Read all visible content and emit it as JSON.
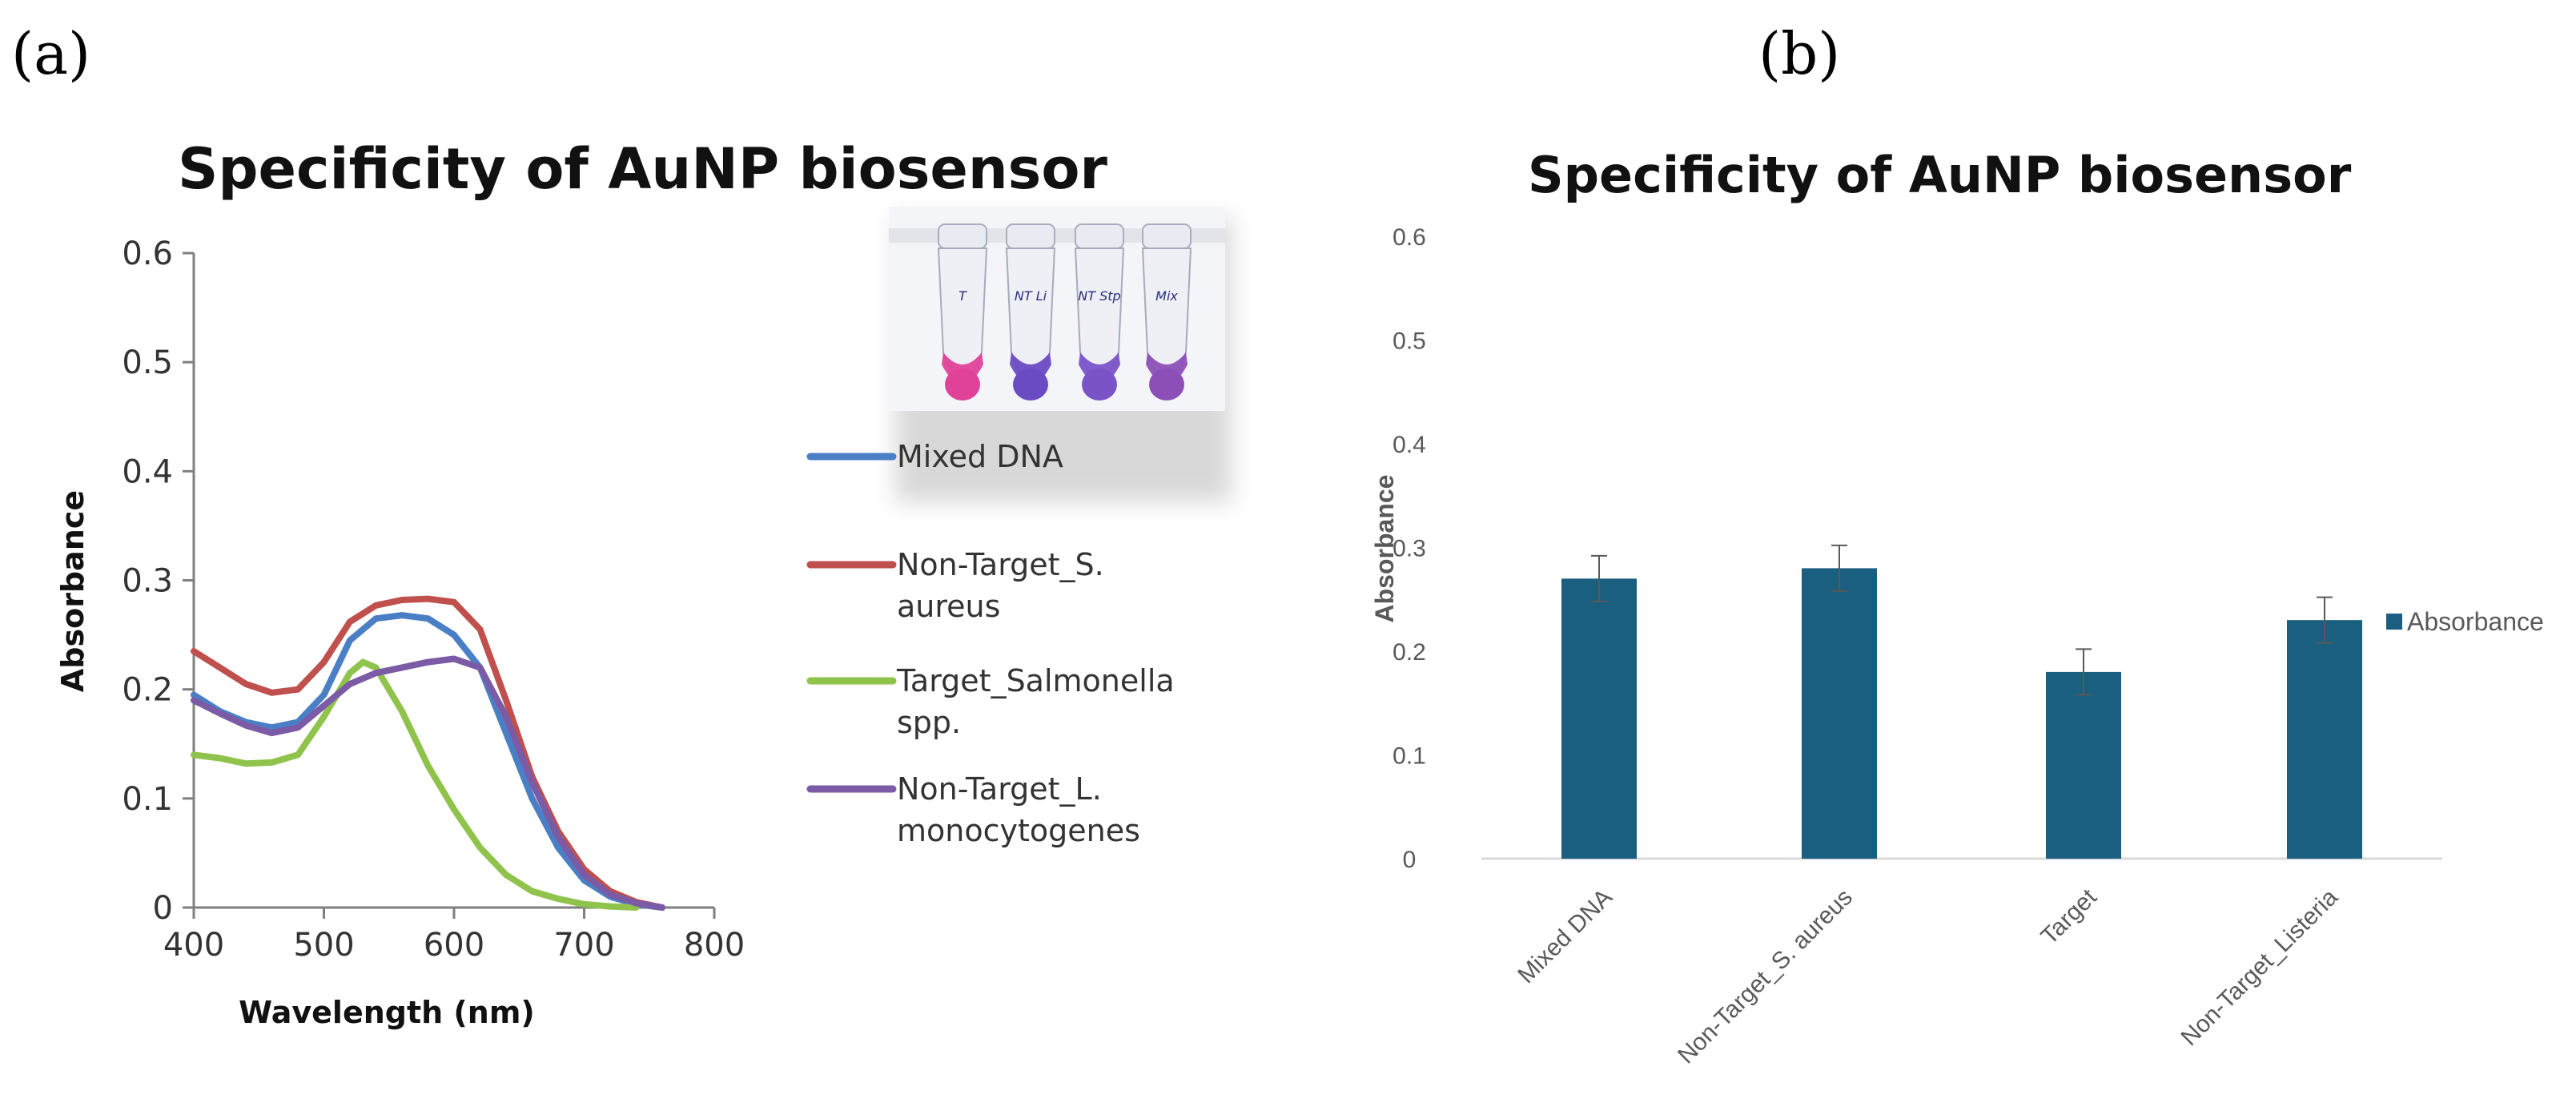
{
  "panel_labels": {
    "a": "(a)",
    "b": "(b)"
  },
  "photo": {
    "tube_labels": [
      "T",
      "NT Li",
      "NT Stp",
      "Mix"
    ],
    "tube_colors": [
      "#e0429a",
      "#6a4bc4",
      "#7a53c7",
      "#8c4fb7"
    ]
  },
  "chart_data": [
    {
      "type": "line",
      "title": "Specificity of AuNP biosensor",
      "xlabel": "Wavelength (nm)",
      "ylabel": "Absorbance",
      "xlim": [
        400,
        800
      ],
      "ylim": [
        0,
        0.6
      ],
      "xticks": [
        "400",
        "500",
        "600",
        "700",
        "800"
      ],
      "yticks": [
        "0",
        "0.1",
        "0.2",
        "0.3",
        "0.4",
        "0.5",
        "0.6"
      ],
      "xtick_values": [
        400,
        500,
        600,
        700,
        800
      ],
      "ytick_values": [
        0,
        0.1,
        0.2,
        0.3,
        0.4,
        0.5,
        0.6
      ],
      "series": [
        {
          "name": "Mixed DNA",
          "color": "#4a7fc6",
          "x": [
            400,
            420,
            440,
            460,
            480,
            500,
            520,
            540,
            560,
            580,
            600,
            620,
            640,
            660,
            680,
            700,
            720,
            740,
            760
          ],
          "y": [
            0.195,
            0.18,
            0.17,
            0.165,
            0.17,
            0.195,
            0.245,
            0.265,
            0.268,
            0.265,
            0.25,
            0.22,
            0.16,
            0.1,
            0.055,
            0.025,
            0.01,
            0.003,
            0
          ]
        },
        {
          "name": "Non-Target_S. aureus",
          "color": "#c0504d",
          "x": [
            400,
            420,
            440,
            460,
            480,
            500,
            520,
            540,
            560,
            580,
            600,
            620,
            640,
            660,
            680,
            700,
            720,
            740,
            760
          ],
          "y": [
            0.235,
            0.22,
            0.205,
            0.197,
            0.2,
            0.225,
            0.262,
            0.277,
            0.282,
            0.283,
            0.28,
            0.255,
            0.19,
            0.12,
            0.07,
            0.035,
            0.015,
            0.005,
            0
          ]
        },
        {
          "name": "Target_Salmonella spp.",
          "color": "#8fc34c",
          "x": [
            400,
            420,
            440,
            460,
            480,
            500,
            520,
            530,
            540,
            560,
            580,
            600,
            620,
            640,
            660,
            680,
            700,
            720,
            740
          ],
          "y": [
            0.14,
            0.137,
            0.132,
            0.133,
            0.14,
            0.175,
            0.215,
            0.225,
            0.22,
            0.18,
            0.13,
            0.09,
            0.055,
            0.03,
            0.015,
            0.008,
            0.003,
            0.001,
            0
          ]
        },
        {
          "name": "Non-Target_L. monocytogenes",
          "color": "#7b5aa6",
          "x": [
            400,
            420,
            440,
            460,
            480,
            500,
            520,
            540,
            560,
            580,
            600,
            620,
            640,
            660,
            680,
            700,
            720,
            740,
            760
          ],
          "y": [
            0.19,
            0.178,
            0.167,
            0.16,
            0.165,
            0.185,
            0.205,
            0.215,
            0.22,
            0.225,
            0.228,
            0.22,
            0.175,
            0.115,
            0.065,
            0.03,
            0.012,
            0.004,
            0
          ]
        }
      ]
    },
    {
      "type": "bar",
      "title": "Specificity of AuNP biosensor",
      "xlabel": "",
      "ylabel": "Absorbance",
      "ylim": [
        0,
        0.6
      ],
      "yticks": [
        "0",
        "0.1",
        "0.2",
        "0.3",
        "0.4",
        "0.5",
        "0.6"
      ],
      "ytick_values": [
        0,
        0.1,
        0.2,
        0.3,
        0.4,
        0.5,
        0.6
      ],
      "categories": [
        "Mixed DNA",
        "Non-Target_S. aureus",
        "Target",
        "Non-Target_Listeria"
      ],
      "series": [
        {
          "name": "Absorbance",
          "color": "#1a5e80",
          "values": [
            0.27,
            0.28,
            0.18,
            0.23
          ],
          "errors": [
            0.022,
            0.022,
            0.022,
            0.022
          ]
        }
      ],
      "legend": "right"
    }
  ]
}
